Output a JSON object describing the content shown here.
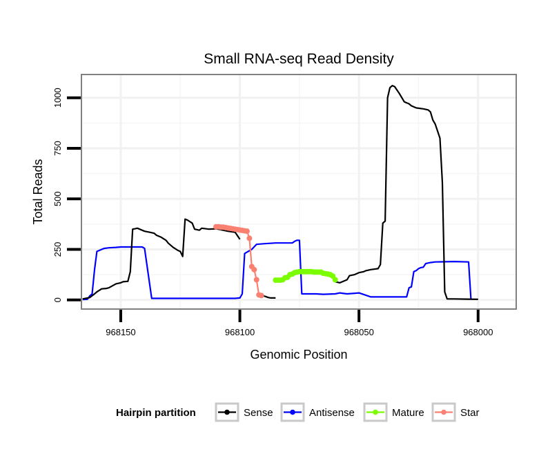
{
  "chart_data": {
    "type": "line",
    "title": "Small RNA-seq Read Density",
    "xlabel": "Genomic Position",
    "ylabel": "Total Reads",
    "xlim": [
      968166.5,
      967984
    ],
    "ylim": [
      -45,
      1115
    ],
    "x_reversed": true,
    "xticks": [
      968150,
      968100,
      968050,
      968000
    ],
    "xtick_labels": [
      "968150",
      "968100",
      "968050",
      "968000"
    ],
    "yticks": [
      0,
      250,
      500,
      750,
      1000
    ],
    "ytick_labels": [
      "0",
      "250",
      "500",
      "750",
      "1000"
    ],
    "grid": true,
    "legend": {
      "title": "Hairpin partition",
      "position": "bottom",
      "entries": [
        {
          "label": "Sense",
          "color": "#000000"
        },
        {
          "label": "Antisense",
          "color": "#0000ff"
        },
        {
          "label": "Mature",
          "color": "#7cfc00"
        },
        {
          "label": "Star",
          "color": "#fa8072"
        }
      ]
    },
    "series": [
      {
        "name": "Sense",
        "color": "#000000",
        "style": "line",
        "x": [
          968166,
          968163,
          968161,
          968160,
          968158,
          968156,
          968155,
          968152,
          968150,
          968149,
          968147,
          968146,
          968145,
          968144,
          968143,
          968140,
          968138,
          968136,
          968135,
          968133,
          968131,
          968130,
          968128,
          968126,
          968125,
          968124,
          968123,
          968122,
          968120,
          968119,
          968117,
          968116,
          968113,
          968110,
          968107,
          968105,
          968102,
          968100
        ],
        "y": [
          5,
          12,
          30,
          40,
          55,
          57,
          60,
          80,
          85,
          90,
          92,
          140,
          350,
          352,
          355,
          340,
          335,
          330,
          320,
          310,
          295,
          280,
          260,
          245,
          240,
          215,
          400,
          395,
          380,
          350,
          345,
          355,
          350,
          352,
          345,
          340,
          335,
          300
        ]
      },
      {
        "name": "Star",
        "color": "#fa8072",
        "style": "points",
        "x": [
          968110,
          968109,
          968108,
          968107,
          968106,
          968105,
          968104,
          968103,
          968102,
          968101,
          968100,
          968099,
          968098,
          968097,
          968096,
          968095,
          968094,
          968093,
          968092,
          968091
        ],
        "y": [
          362,
          362,
          360,
          360,
          358,
          356,
          354,
          352,
          350,
          348,
          346,
          344,
          342,
          340,
          305,
          165,
          150,
          100,
          25,
          22
        ]
      },
      {
        "name": "Sense",
        "color": "#000000",
        "style": "line",
        "x": [
          968091,
          968090,
          968088,
          968087,
          968086,
          968085
        ],
        "y": [
          22,
          20,
          12,
          10,
          10,
          10
        ]
      },
      {
        "name": "Mature",
        "color": "#7cfc00",
        "style": "points",
        "x": [
          968085,
          968084,
          968083,
          968082,
          968081,
          968080,
          968079,
          968078,
          968077,
          968076,
          968075,
          968074,
          968073,
          968072,
          968071,
          968070,
          968069,
          968068,
          968067,
          968066,
          968065,
          968064,
          968063,
          968062,
          968061,
          968060
        ],
        "y": [
          98,
          98,
          98,
          100,
          110,
          112,
          125,
          128,
          135,
          138,
          140,
          140,
          140,
          140,
          140,
          140,
          138,
          138,
          138,
          138,
          132,
          130,
          128,
          125,
          118,
          100
        ]
      },
      {
        "name": "Sense",
        "color": "#000000",
        "style": "line",
        "x": [
          968060,
          968058,
          968057,
          968055,
          968054,
          968052,
          968050,
          968048,
          968047,
          968045,
          968042,
          968041,
          968040,
          968039,
          968038,
          968037,
          968036,
          968035,
          968033,
          968031,
          968029,
          968028,
          968026,
          968023,
          968021,
          968020,
          968019,
          968018,
          968016,
          968015,
          968014,
          968013,
          968012,
          968010,
          968005,
          968000
        ],
        "y": [
          90,
          85,
          90,
          100,
          120,
          125,
          135,
          140,
          145,
          150,
          155,
          175,
          380,
          390,
          1000,
          1050,
          1060,
          1055,
          1020,
          980,
          970,
          960,
          950,
          945,
          940,
          930,
          890,
          870,
          800,
          580,
          40,
          5,
          5,
          5,
          4,
          3
        ]
      },
      {
        "name": "Antisense",
        "color": "#0000ff",
        "style": "line",
        "x": [
          968166,
          968164,
          968163,
          968162,
          968161,
          968160,
          968159,
          968158,
          968157,
          968155,
          968152,
          968150,
          968145,
          968142,
          968141,
          968140,
          968137,
          968133,
          968130,
          968125,
          968120,
          968110,
          968103,
          968102,
          968100,
          968099,
          968098,
          968095,
          968093,
          968090,
          968085,
          968080,
          968078,
          968077,
          968076,
          968075,
          968074,
          968070,
          968068,
          968065,
          968060,
          968058,
          968055,
          968050,
          968045,
          968040,
          968035,
          968030,
          968029,
          968028,
          968027,
          968026,
          968025,
          968024,
          968023,
          968022,
          968020,
          968018,
          968010,
          968004,
          968003
        ],
        "y": [
          2,
          3,
          20,
          30,
          150,
          240,
          245,
          250,
          255,
          258,
          260,
          262,
          262,
          262,
          262,
          255,
          8,
          8,
          8,
          8,
          8,
          8,
          8,
          8,
          10,
          30,
          230,
          250,
          275,
          278,
          282,
          282,
          282,
          290,
          295,
          295,
          30,
          30,
          30,
          28,
          30,
          35,
          30,
          35,
          15,
          15,
          15,
          15,
          60,
          65,
          140,
          145,
          155,
          160,
          162,
          180,
          185,
          188,
          190,
          188,
          5
        ]
      }
    ]
  }
}
